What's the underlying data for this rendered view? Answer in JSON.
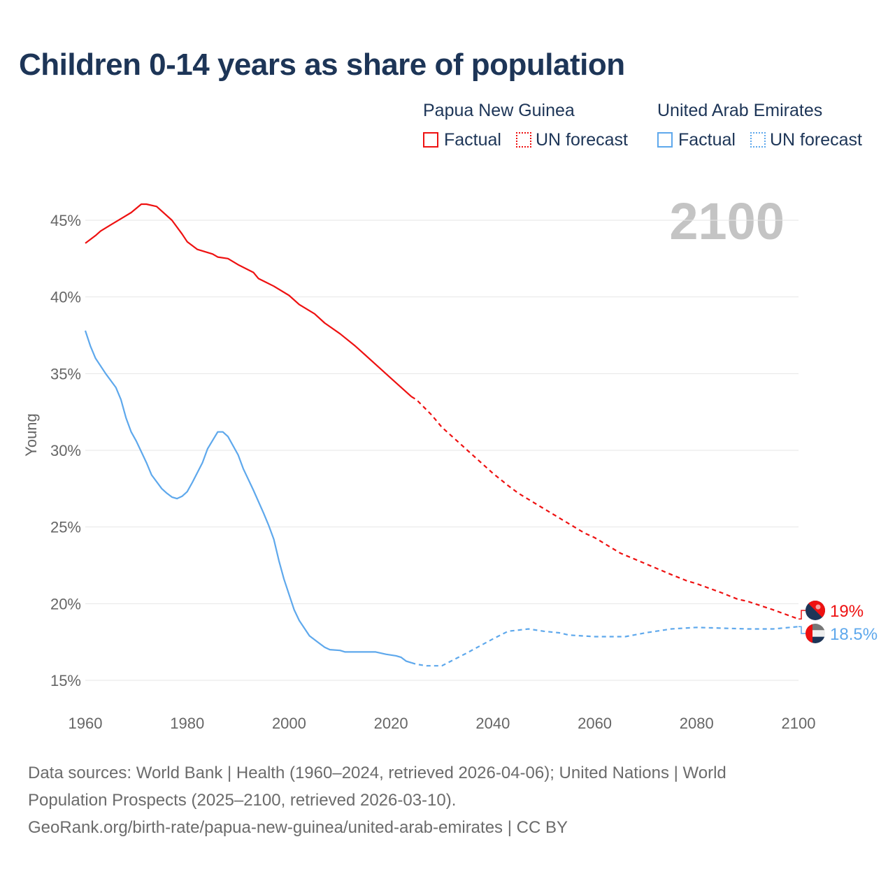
{
  "title": "Children 0-14 years as share of population",
  "legend": {
    "groups": [
      {
        "country": "Papua New Guinea",
        "color": "#ee1111",
        "factual_label": "Factual",
        "forecast_label": "UN forecast"
      },
      {
        "country": "United Arab Emirates",
        "color": "#5ea8ec",
        "factual_label": "Factual",
        "forecast_label": "UN forecast"
      }
    ]
  },
  "chart_data": {
    "type": "line",
    "title": "Children 0-14 years as share of population",
    "xlabel": "",
    "ylabel": "Young",
    "xlim": [
      1960,
      2100
    ],
    "ylim": [
      15,
      46.5
    ],
    "x_ticks": [
      "1960",
      "1980",
      "2000",
      "2020",
      "2040",
      "2060",
      "2080",
      "2100"
    ],
    "y_ticks": [
      "15%",
      "20%",
      "25%",
      "30%",
      "35%",
      "40%",
      "45%"
    ],
    "year_watermark": "2100",
    "forecast_start": 2024,
    "grid": true,
    "series": [
      {
        "name": "Papua New Guinea",
        "color": "#ee1111",
        "end_label": "19%",
        "flag": "papua-new-guinea-flag",
        "points": [
          [
            1960,
            43.5
          ],
          [
            1962,
            44.0
          ],
          [
            1963,
            44.3
          ],
          [
            1965,
            44.7
          ],
          [
            1967,
            45.1
          ],
          [
            1969,
            45.5
          ],
          [
            1971,
            46.05
          ],
          [
            1972,
            46.05
          ],
          [
            1974,
            45.9
          ],
          [
            1977,
            45.0
          ],
          [
            1979,
            44.1
          ],
          [
            1980,
            43.6
          ],
          [
            1982,
            43.1
          ],
          [
            1985,
            42.8
          ],
          [
            1986,
            42.6
          ],
          [
            1988,
            42.5
          ],
          [
            1990,
            42.1
          ],
          [
            1993,
            41.6
          ],
          [
            1994,
            41.2
          ],
          [
            1997,
            40.7
          ],
          [
            2000,
            40.1
          ],
          [
            2002,
            39.5
          ],
          [
            2005,
            38.9
          ],
          [
            2007,
            38.3
          ],
          [
            2010,
            37.6
          ],
          [
            2013,
            36.8
          ],
          [
            2015,
            36.2
          ],
          [
            2018,
            35.3
          ],
          [
            2020,
            34.7
          ],
          [
            2022,
            34.1
          ],
          [
            2024,
            33.5
          ],
          [
            2025,
            33.3
          ],
          [
            2028,
            32.3
          ],
          [
            2030,
            31.5
          ],
          [
            2033,
            30.6
          ],
          [
            2035,
            30.0
          ],
          [
            2038,
            29.1
          ],
          [
            2040,
            28.5
          ],
          [
            2043,
            27.7
          ],
          [
            2045,
            27.2
          ],
          [
            2050,
            26.2
          ],
          [
            2055,
            25.2
          ],
          [
            2058,
            24.6
          ],
          [
            2060,
            24.3
          ],
          [
            2065,
            23.3
          ],
          [
            2070,
            22.6
          ],
          [
            2075,
            21.9
          ],
          [
            2078,
            21.5
          ],
          [
            2080,
            21.3
          ],
          [
            2085,
            20.7
          ],
          [
            2088,
            20.3
          ],
          [
            2090,
            20.15
          ],
          [
            2095,
            19.6
          ],
          [
            2100,
            19.0
          ]
        ]
      },
      {
        "name": "United Arab Emirates",
        "color": "#5ea8ec",
        "end_label": "18.5%",
        "flag": "united-arab-emirates-flag",
        "points": [
          [
            1960,
            37.8
          ],
          [
            1961,
            36.8
          ],
          [
            1962,
            36.0
          ],
          [
            1964,
            35.0
          ],
          [
            1966,
            34.1
          ],
          [
            1967,
            33.3
          ],
          [
            1968,
            32.1
          ],
          [
            1969,
            31.2
          ],
          [
            1970,
            30.6
          ],
          [
            1972,
            29.2
          ],
          [
            1973,
            28.4
          ],
          [
            1975,
            27.5
          ],
          [
            1976,
            27.2
          ],
          [
            1977,
            26.95
          ],
          [
            1978,
            26.85
          ],
          [
            1979,
            27.0
          ],
          [
            1980,
            27.3
          ],
          [
            1981,
            27.9
          ],
          [
            1983,
            29.2
          ],
          [
            1984,
            30.1
          ],
          [
            1986,
            31.2
          ],
          [
            1987,
            31.2
          ],
          [
            1988,
            30.9
          ],
          [
            1990,
            29.7
          ],
          [
            1991,
            28.8
          ],
          [
            1993,
            27.4
          ],
          [
            1995,
            25.9
          ],
          [
            1996,
            25.1
          ],
          [
            1997,
            24.2
          ],
          [
            1998,
            22.8
          ],
          [
            1999,
            21.6
          ],
          [
            2000,
            20.6
          ],
          [
            2001,
            19.6
          ],
          [
            2002,
            18.9
          ],
          [
            2004,
            17.9
          ],
          [
            2006,
            17.4
          ],
          [
            2007,
            17.15
          ],
          [
            2008,
            17.0
          ],
          [
            2010,
            16.95
          ],
          [
            2011,
            16.85
          ],
          [
            2017,
            16.85
          ],
          [
            2019,
            16.7
          ],
          [
            2021,
            16.6
          ],
          [
            2022,
            16.5
          ],
          [
            2023,
            16.25
          ],
          [
            2024,
            16.15
          ],
          [
            2025,
            16.05
          ],
          [
            2027,
            15.95
          ],
          [
            2030,
            15.95
          ],
          [
            2035,
            16.8
          ],
          [
            2040,
            17.7
          ],
          [
            2043,
            18.2
          ],
          [
            2047,
            18.35
          ],
          [
            2050,
            18.2
          ],
          [
            2053,
            18.1
          ],
          [
            2055,
            17.95
          ],
          [
            2060,
            17.85
          ],
          [
            2066,
            17.85
          ],
          [
            2070,
            18.1
          ],
          [
            2075,
            18.35
          ],
          [
            2080,
            18.45
          ],
          [
            2085,
            18.4
          ],
          [
            2090,
            18.35
          ],
          [
            2095,
            18.35
          ],
          [
            2100,
            18.5
          ]
        ]
      }
    ]
  },
  "footer": {
    "line1": "Data sources: World Bank | Health (1960–2024, retrieved 2026-04-06); United Nations | World",
    "line2": "Population Prospects (2025–2100, retrieved 2026-03-10).",
    "line3": "GeoRank.org/birth-rate/papua-new-guinea/united-arab-emirates | CC BY"
  }
}
